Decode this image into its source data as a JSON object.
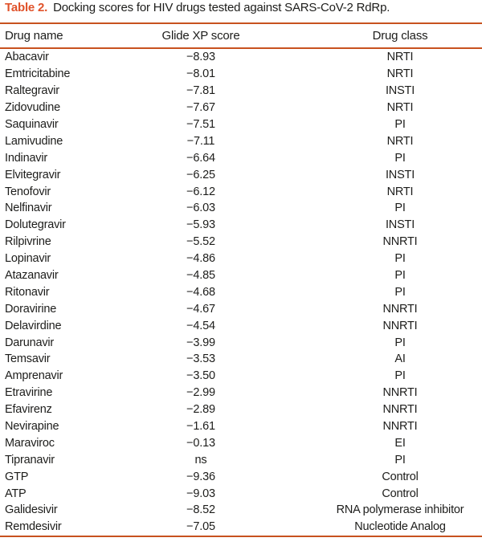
{
  "title": {
    "label": "Table 2.",
    "caption": "Docking scores for HIV drugs tested against SARS-CoV-2 RdRp."
  },
  "columns": [
    "Drug name",
    "Glide XP score",
    "Drug class"
  ],
  "rows": [
    [
      "Abacavir",
      "−8.93",
      "NRTI"
    ],
    [
      "Emtricitabine",
      "−8.01",
      "NRTI"
    ],
    [
      "Raltegravir",
      "−7.81",
      "INSTI"
    ],
    [
      "Zidovudine",
      "−7.67",
      "NRTI"
    ],
    [
      "Saquinavir",
      "−7.51",
      "PI"
    ],
    [
      "Lamivudine",
      "−7.11",
      "NRTI"
    ],
    [
      "Indinavir",
      "−6.64",
      "PI"
    ],
    [
      "Elvitegravir",
      "−6.25",
      "INSTI"
    ],
    [
      "Tenofovir",
      "−6.12",
      "NRTI"
    ],
    [
      "Nelfinavir",
      "−6.03",
      "PI"
    ],
    [
      "Dolutegravir",
      "−5.93",
      "INSTI"
    ],
    [
      "Rilpivrine",
      "−5.52",
      "NNRTI"
    ],
    [
      "Lopinavir",
      "−4.86",
      "PI"
    ],
    [
      "Atazanavir",
      "−4.85",
      "PI"
    ],
    [
      "Ritonavir",
      "−4.68",
      "PI"
    ],
    [
      "Doravirine",
      "−4.67",
      "NNRTI"
    ],
    [
      "Delavirdine",
      "−4.54",
      "NNRTI"
    ],
    [
      "Darunavir",
      "−3.99",
      "PI"
    ],
    [
      "Temsavir",
      "−3.53",
      "AI"
    ],
    [
      "Amprenavir",
      "−3.50",
      "PI"
    ],
    [
      "Etravirine",
      "−2.99",
      "NNRTI"
    ],
    [
      "Efavirenz",
      "−2.89",
      "NNRTI"
    ],
    [
      "Nevirapine",
      "−1.61",
      "NNRTI"
    ],
    [
      "Maraviroc",
      "−0.13",
      "EI"
    ],
    [
      "Tipranavir",
      "ns",
      "PI"
    ],
    [
      "GTP",
      "−9.36",
      "Control"
    ],
    [
      "ATP",
      "−9.03",
      "Control"
    ],
    [
      "Galidesivir",
      "−8.52",
      "RNA polymerase inhibitor"
    ],
    [
      "Remdesivir",
      "−7.05",
      "Nucleotide Analog"
    ]
  ],
  "colors": {
    "accent_title": "#e0522a",
    "accent_rule": "#c8521f",
    "text": "#1d1d1b"
  }
}
